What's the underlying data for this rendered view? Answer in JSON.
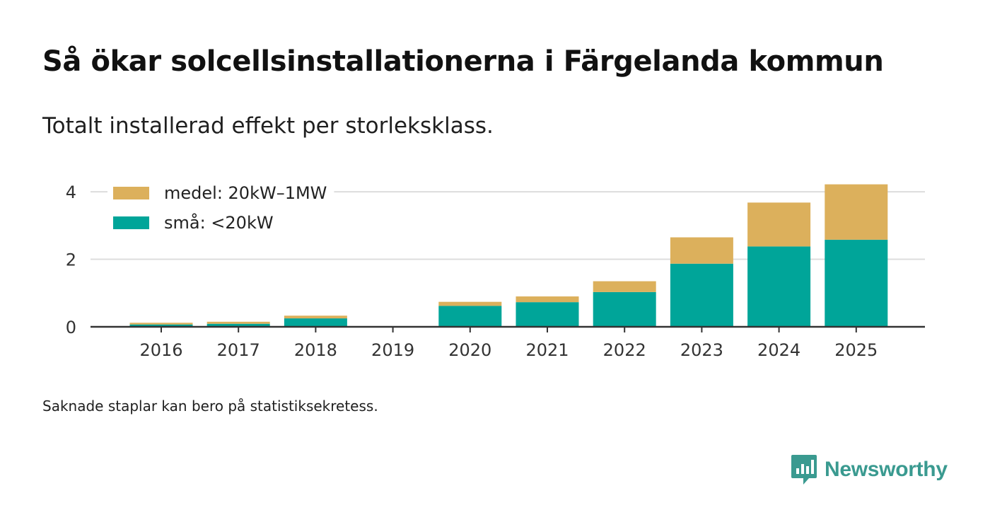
{
  "title": "Så ökar solcellsinstallationerna i Färgelanda kommun",
  "subtitle": "Totalt installerad effekt per storleksklass.",
  "footnote": "Saknade staplar kan bero på statistiksekretess.",
  "brand": {
    "name": "Newsworthy",
    "color": "#3a9a90"
  },
  "chart_data": {
    "type": "bar",
    "stacked": true,
    "title": "Så ökar solcellsinstallationerna i Färgelanda kommun",
    "subtitle": "Totalt installerad effekt per storleksklass.",
    "xlabel": "",
    "ylabel": "",
    "categories": [
      "2016",
      "2017",
      "2018",
      "2019",
      "2020",
      "2021",
      "2022",
      "2023",
      "2024",
      "2025"
    ],
    "series": [
      {
        "name": "små: <20kW",
        "color": "#00a599",
        "values": [
          0.07,
          0.09,
          0.25,
          null,
          0.62,
          0.73,
          1.03,
          1.87,
          2.38,
          2.58
        ]
      },
      {
        "name": "medel: 20kW–1MW",
        "color": "#dcb05c",
        "values": [
          0.05,
          0.06,
          0.08,
          null,
          0.12,
          0.17,
          0.32,
          0.78,
          1.3,
          1.64
        ]
      }
    ],
    "ylim": [
      0,
      4.4
    ],
    "yticks": [
      0,
      2,
      4
    ],
    "grid": true,
    "legend": "top-left"
  }
}
